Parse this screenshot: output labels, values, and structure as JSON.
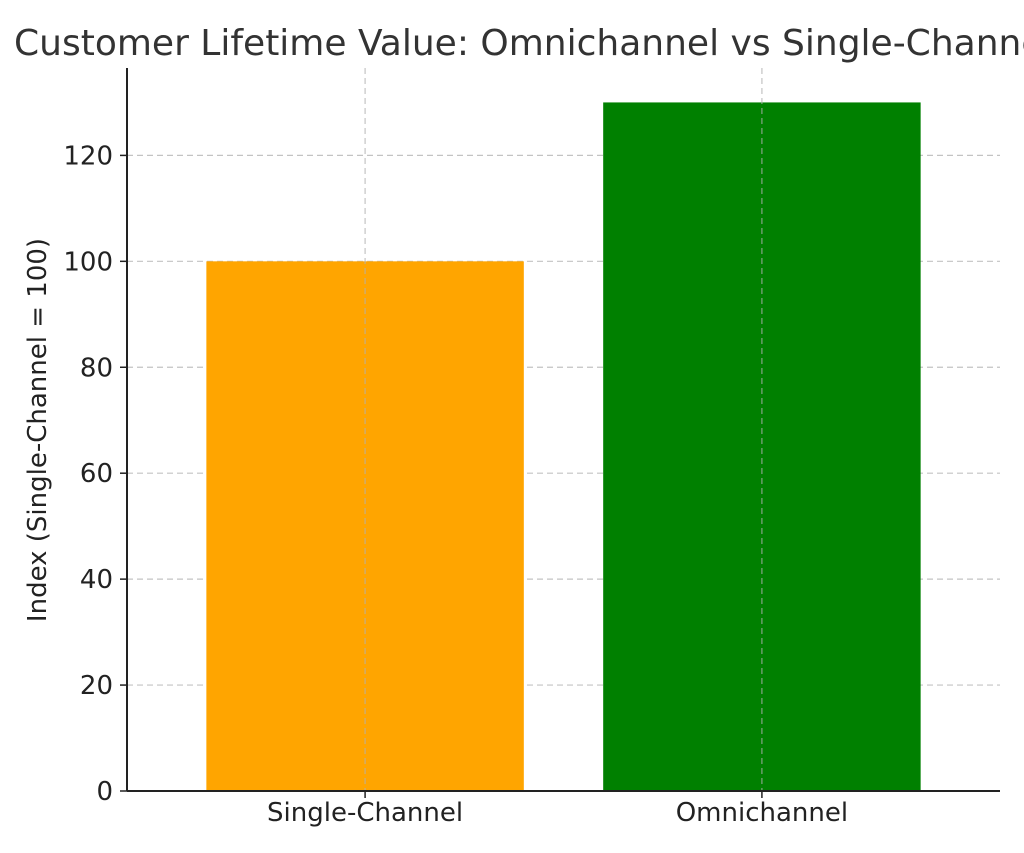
{
  "chart_data": {
    "type": "bar",
    "title": "Customer Lifetime Value: Omnichannel vs Single-Channel",
    "xlabel": "",
    "ylabel": "Index (Single-Channel = 100)",
    "categories": [
      "Single-Channel",
      "Omnichannel"
    ],
    "values": [
      100,
      130
    ],
    "colors": [
      "#FFA500",
      "#008000"
    ],
    "ylim": [
      0,
      136.5
    ],
    "yticks": [
      0,
      20,
      40,
      60,
      80,
      100,
      120
    ],
    "grid": true
  }
}
